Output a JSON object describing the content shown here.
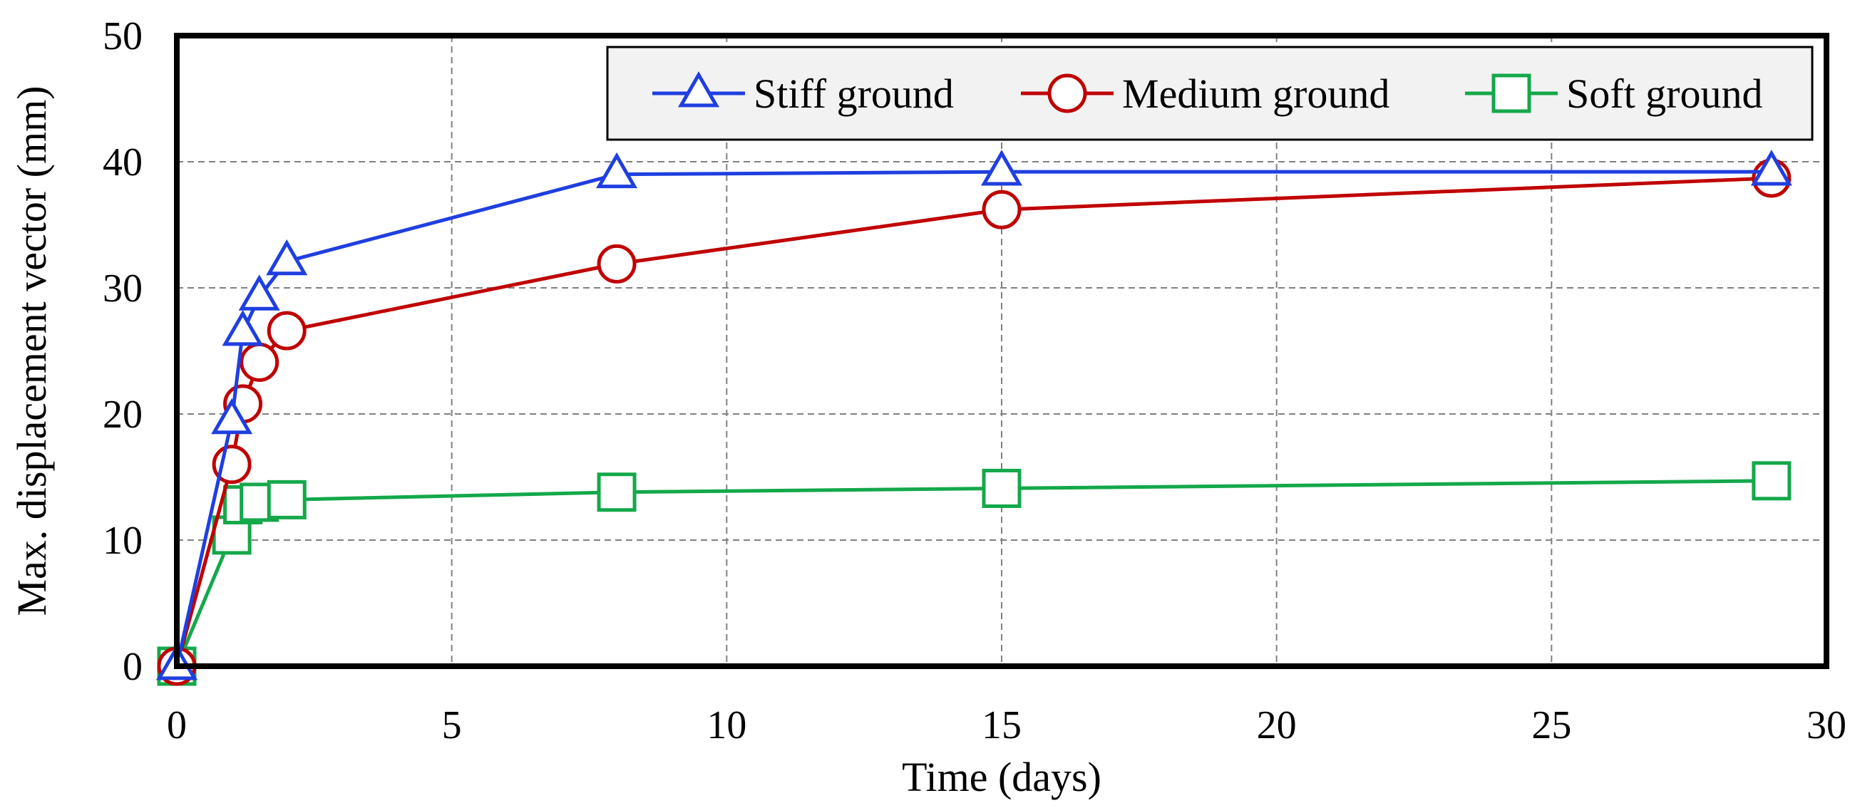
{
  "chart_data": {
    "type": "line",
    "title": "",
    "xlabel": "Time (days)",
    "ylabel": "Max. displacement vector (mm)",
    "xlim": [
      0,
      30
    ],
    "ylim": [
      0,
      50
    ],
    "xticks": [
      0,
      5,
      10,
      15,
      20,
      25,
      30
    ],
    "yticks": [
      0,
      10,
      20,
      30,
      40,
      50
    ],
    "grid": true,
    "legend_position": "top-right",
    "series": [
      {
        "name": "Stiff ground",
        "color": "#1f3fe0",
        "marker": "triangle",
        "x": [
          0,
          1,
          1.2,
          1.5,
          2,
          8,
          15,
          29
        ],
        "y": [
          0,
          19.5,
          26.5,
          29.3,
          32.1,
          39.0,
          39.2,
          39.2
        ]
      },
      {
        "name": "Medium ground",
        "color": "#c00000",
        "marker": "circle",
        "x": [
          0,
          1,
          1.2,
          1.5,
          2,
          8,
          15,
          29
        ],
        "y": [
          0,
          16.0,
          20.8,
          24.1,
          26.6,
          31.9,
          36.2,
          38.7
        ]
      },
      {
        "name": "Soft ground",
        "color": "#14a84a",
        "marker": "square",
        "x": [
          0,
          1,
          1.2,
          1.5,
          2,
          8,
          15,
          29
        ],
        "y": [
          0,
          10.4,
          12.8,
          13.0,
          13.2,
          13.8,
          14.1,
          14.7
        ]
      }
    ]
  }
}
